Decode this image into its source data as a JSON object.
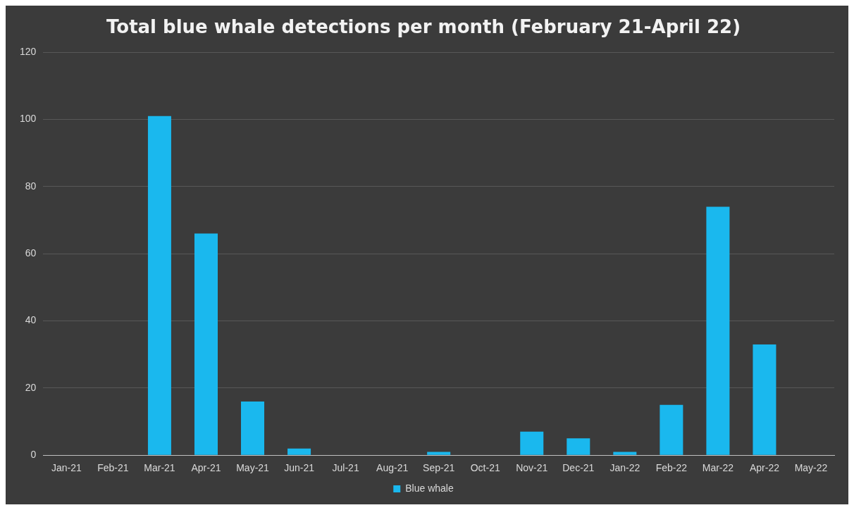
{
  "chart_data": {
    "type": "bar",
    "title": "Total blue whale detections per month (February 21-April 22)",
    "categories": [
      "Jan-21",
      "Feb-21",
      "Mar-21",
      "Apr-21",
      "May-21",
      "Jun-21",
      "Jul-21",
      "Aug-21",
      "Sep-21",
      "Oct-21",
      "Nov-21",
      "Dec-21",
      "Jan-22",
      "Feb-22",
      "Mar-22",
      "Apr-22",
      "May-22"
    ],
    "series": [
      {
        "name": "Blue whale",
        "color": "#1ab8ee",
        "values": [
          0,
          0,
          101,
          66,
          16,
          2,
          0,
          0,
          1,
          0,
          7,
          5,
          1,
          15,
          74,
          33,
          0
        ]
      }
    ],
    "ylim": [
      0,
      120
    ],
    "yticks": [
      0,
      20,
      40,
      60,
      80,
      100,
      120
    ],
    "grid": "y",
    "legend": "bottom"
  }
}
